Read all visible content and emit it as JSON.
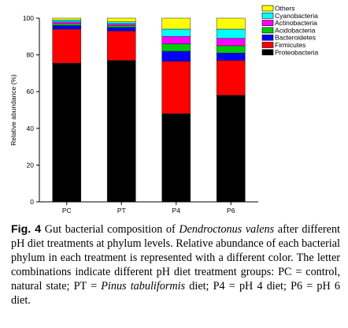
{
  "chart_data": {
    "type": "bar",
    "stacked": true,
    "categories": [
      "PC",
      "PT",
      "P4",
      "P6"
    ],
    "ylabel": "Relative abundance (%)",
    "ylim": [
      0,
      100
    ],
    "yticks": [
      0,
      20,
      40,
      60,
      80,
      100
    ],
    "legend_position": "top-right",
    "series": [
      {
        "name": "Proteobacteria",
        "color": "#000000",
        "values": [
          75.5,
          77,
          48,
          58
        ]
      },
      {
        "name": "Firmicutes",
        "color": "#ff0000",
        "values": [
          18.5,
          16,
          28.5,
          19
        ]
      },
      {
        "name": "Bacteroidetes",
        "color": "#0000ff",
        "values": [
          2,
          2,
          5.5,
          4
        ]
      },
      {
        "name": "Acidobacteria",
        "color": "#00cc00",
        "values": [
          1,
          1,
          4,
          4
        ]
      },
      {
        "name": "Actinobacteria",
        "color": "#ff00ff",
        "values": [
          1,
          1,
          4,
          4
        ]
      },
      {
        "name": "Cyanobacteria",
        "color": "#00ffff",
        "values": [
          1,
          1,
          4,
          5
        ]
      },
      {
        "name": "Others",
        "color": "#ffff00",
        "values": [
          1,
          2,
          6,
          6
        ]
      }
    ]
  },
  "caption": {
    "label": "Fig. 4",
    "parts": [
      {
        "t": " Gut bacterial composition of ",
        "i": false
      },
      {
        "t": "Dendroctonus valens",
        "i": true
      },
      {
        "t": " after different pH diet treatments at phylum levels. Relative abundance of each bacterial phylum in each treatment is represented with a different color. The letter combinations indicate different pH diet treatment groups: PC = control, natural state; PT = ",
        "i": false
      },
      {
        "t": "Pinus tabuliformis",
        "i": true
      },
      {
        "t": " diet; P4 = pH 4 diet; P6 = pH 6 diet.",
        "i": false
      }
    ]
  }
}
